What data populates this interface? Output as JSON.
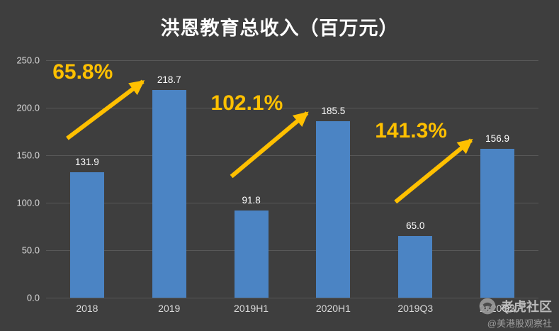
{
  "chart_data": {
    "type": "bar",
    "title": "洪恩教育总收入（百万元）",
    "categories": [
      "2018",
      "2019",
      "2019H1",
      "2020H1",
      "2019Q3",
      "2020Q3"
    ],
    "values": [
      131.9,
      218.7,
      91.8,
      185.5,
      65.0,
      156.9
    ],
    "value_labels": [
      "131.9",
      "218.7",
      "91.8",
      "185.5",
      "65.0",
      "156.9"
    ],
    "ylim": [
      0,
      250
    ],
    "ytick_interval": 50,
    "ytick_labels": [
      "0.0",
      "50.0",
      "100.0",
      "150.0",
      "200.0",
      "250.0"
    ],
    "grid": true,
    "legend": false,
    "growth_annotations": [
      {
        "label": "65.8%",
        "from_index": 0,
        "to_index": 1
      },
      {
        "label": "102.1%",
        "from_index": 2,
        "to_index": 3
      },
      {
        "label": "141.3%",
        "from_index": 4,
        "to_index": 5
      }
    ],
    "colors": {
      "background": "#3E3E3E",
      "bar": "#4B84C4",
      "accent": "#FFC000",
      "grid": "#585858",
      "axis_text": "#D9D9D9",
      "value_text": "#FFFFFF",
      "title_text": "#FFFFFF"
    }
  },
  "watermark": {
    "community_name": "老虎社区",
    "account_name": "@美港股观察社",
    "logo": "tiger-logo"
  }
}
